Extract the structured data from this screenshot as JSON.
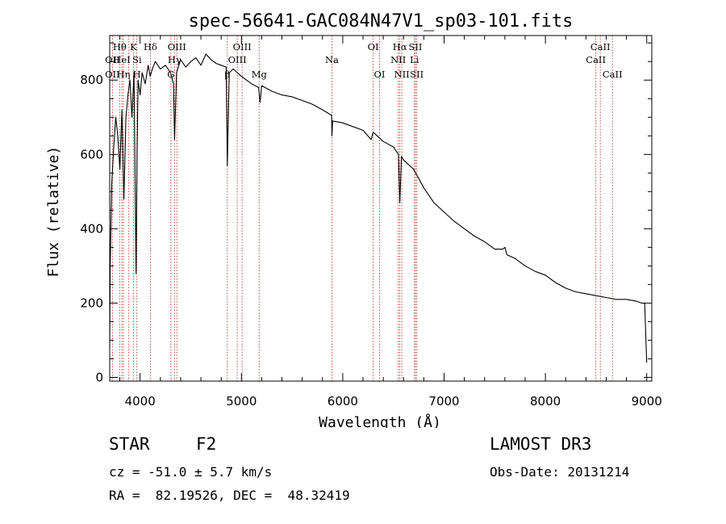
{
  "chart_data": {
    "type": "line",
    "title": "spec-56641-GAC084N47V1_sp03-101.fits",
    "xlabel": "Wavelength (Å)",
    "ylabel": "Flux (relative)",
    "xlim": [
      3700,
      9050
    ],
    "ylim": [
      -10,
      920
    ],
    "xticks": [
      4000,
      5000,
      6000,
      7000,
      8000,
      9000
    ],
    "yticks": [
      0,
      200,
      400,
      600,
      800
    ],
    "grid": false,
    "series": [
      {
        "name": "flux",
        "x": [
          3700,
          3705,
          3720,
          3740,
          3760,
          3780,
          3800,
          3820,
          3840,
          3860,
          3880,
          3900,
          3920,
          3940,
          3960,
          3970,
          3980,
          4000,
          4020,
          4050,
          4080,
          4100,
          4120,
          4150,
          4200,
          4250,
          4300,
          4330,
          4340,
          4360,
          4400,
          4450,
          4500,
          4550,
          4600,
          4650,
          4700,
          4750,
          4800,
          4850,
          4861,
          4880,
          4920,
          5000,
          5100,
          5170,
          5184,
          5200,
          5300,
          5400,
          5500,
          5600,
          5700,
          5800,
          5890,
          5893,
          5900,
          6000,
          6100,
          6200,
          6280,
          6300,
          6400,
          6500,
          6550,
          6563,
          6580,
          6600,
          6700,
          6800,
          6900,
          7000,
          7100,
          7200,
          7300,
          7400,
          7500,
          7580,
          7600,
          7620,
          7700,
          7800,
          7900,
          8000,
          8100,
          8200,
          8300,
          8400,
          8500,
          8600,
          8700,
          8800,
          8900,
          8950,
          8980,
          9000
        ],
        "y": [
          80,
          300,
          520,
          620,
          700,
          650,
          560,
          720,
          480,
          700,
          760,
          800,
          700,
          820,
          280,
          600,
          800,
          760,
          820,
          790,
          840,
          810,
          830,
          850,
          830,
          840,
          820,
          790,
          640,
          820,
          855,
          835,
          850,
          860,
          840,
          870,
          855,
          845,
          840,
          835,
          570,
          820,
          830,
          810,
          790,
          780,
          740,
          785,
          770,
          760,
          755,
          745,
          735,
          720,
          705,
          650,
          690,
          685,
          675,
          665,
          640,
          660,
          635,
          620,
          600,
          470,
          595,
          585,
          560,
          510,
          470,
          445,
          420,
          400,
          380,
          365,
          345,
          345,
          350,
          330,
          320,
          300,
          285,
          275,
          255,
          240,
          230,
          225,
          220,
          215,
          210,
          210,
          205,
          200,
          200,
          40
        ]
      }
    ],
    "line_markers": [
      {
        "label": "Hθ",
        "x": 3798,
        "row": 1
      },
      {
        "label": "OII",
        "x": 3727,
        "row": 2
      },
      {
        "label": "HeI",
        "x": 3820,
        "row": 2
      },
      {
        "label": "OII",
        "x": 3727,
        "row": 3
      },
      {
        "label": "Hη",
        "x": 3835,
        "row": 3
      },
      {
        "label": "K",
        "x": 3934,
        "row": 1
      },
      {
        "label": "Si",
        "x": 3970,
        "row": 2
      },
      {
        "label": "H",
        "x": 3968,
        "row": 3
      },
      {
        "label": "Hδ",
        "x": 4102,
        "row": 1
      },
      {
        "label": "OIII",
        "x": 4363,
        "row": 1
      },
      {
        "label": "Hγ",
        "x": 4340,
        "row": 2
      },
      {
        "label": "G",
        "x": 4304,
        "row": 3
      },
      {
        "label": "OIII",
        "x": 5007,
        "row": 1
      },
      {
        "label": "OIII",
        "x": 4959,
        "row": 2
      },
      {
        "label": "β",
        "x": 4861,
        "row": 3
      },
      {
        "label": "Mg",
        "x": 5175,
        "row": 3
      },
      {
        "label": "Na",
        "x": 5893,
        "row": 2
      },
      {
        "label": "OI",
        "x": 6300,
        "row": 1
      },
      {
        "label": "OI",
        "x": 6363,
        "row": 3
      },
      {
        "label": "Hα",
        "x": 6563,
        "row": 1
      },
      {
        "label": "NII",
        "x": 6548,
        "row": 2
      },
      {
        "label": "NII",
        "x": 6583,
        "row": 3
      },
      {
        "label": "SII",
        "x": 6717,
        "row": 1
      },
      {
        "label": "Li",
        "x": 6708,
        "row": 2
      },
      {
        "label": "SII",
        "x": 6731,
        "row": 3
      },
      {
        "label": "CaII",
        "x": 8542,
        "row": 1
      },
      {
        "label": "CaII",
        "x": 8498,
        "row": 2
      },
      {
        "label": "CaII",
        "x": 8662,
        "row": 3
      }
    ],
    "marker_lines_x": [
      3727,
      3798,
      3820,
      3835,
      3889,
      3934,
      3968,
      4102,
      4304,
      4340,
      4363,
      4861,
      4959,
      5007,
      5175,
      5893,
      6300,
      6363,
      6548,
      6563,
      6583,
      6708,
      6717,
      6731,
      8498,
      8542,
      8662
    ]
  },
  "info": {
    "class_label": "STAR",
    "subclass": "F2",
    "survey": "LAMOST DR3",
    "cz": "cz = -51.0 ± 5.7 km/s",
    "obs_date": "Obs-Date: 20131214",
    "coords": "RA =  82.19526, DEC =  48.32419"
  },
  "colors": {
    "marker_line": "#c0392b",
    "spectrum": "#000000"
  }
}
